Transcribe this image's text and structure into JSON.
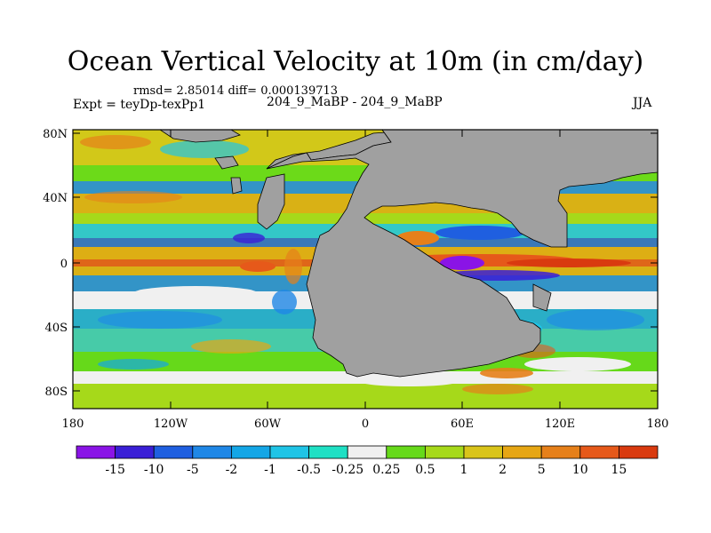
{
  "title": "Ocean Vertical Velocity at 10m (in cm/day)",
  "stats_line": "rmsd= 2.85014 diff= 0.000139713",
  "expt_line": "Expt = teyDp-texPp1",
  "experiment_names": "204_9_MaBP - 204_9_MaBP",
  "season": "JJA",
  "lat_ticks": [
    "80N",
    "40N",
    "0",
    "40S",
    "80S"
  ],
  "lon_ticks": [
    "180",
    "120W",
    "60W",
    "0",
    "60E",
    "120E",
    "180"
  ],
  "colorbar": {
    "labels": [
      "-15",
      "-10",
      "-5",
      "-2",
      "-1",
      "-0.5",
      "-0.25",
      "0.25",
      "0.5",
      "1",
      "2",
      "5",
      "10",
      "15"
    ],
    "colors": [
      "#8a14e6",
      "#3a1fd6",
      "#1f5fe0",
      "#1f87e6",
      "#14a6e6",
      "#1fc4e6",
      "#1fe0c4",
      "#f0f0f0",
      "#66d91a",
      "#a6d91a",
      "#d9c41a",
      "#e6a614",
      "#e6801a",
      "#e6591a",
      "#d93a0f"
    ]
  },
  "colors": {
    "land": "#a0a0a0",
    "frame": "#000000"
  }
}
